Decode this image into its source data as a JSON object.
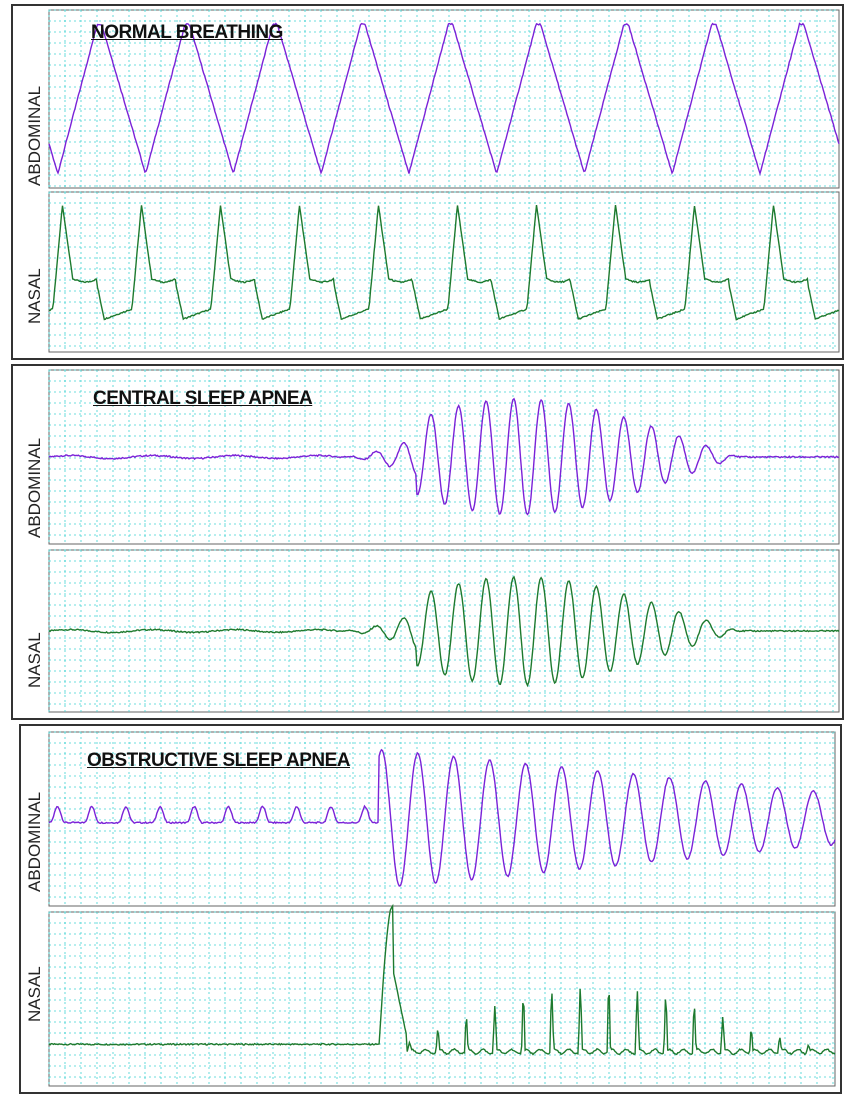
{
  "colors": {
    "abdominal": "#7b22d8",
    "nasal": "#1e7a2e",
    "grid": "#3fd2d2",
    "frame": "#333333"
  },
  "chart_data": [
    {
      "type": "line",
      "title": "NORMAL BREATHING",
      "tracks": [
        {
          "label": "ABDOMINAL",
          "pattern": "normal-abd",
          "cycles": 9
        },
        {
          "label": "NASAL",
          "pattern": "normal-nasal",
          "cycles": 10
        }
      ],
      "grid": true
    },
    {
      "type": "line",
      "title": "CENTRAL SLEEP APNEA",
      "tracks": [
        {
          "label": "ABDOMINAL",
          "pattern": "central",
          "apnea_fraction": 0.37,
          "cycles": 19
        },
        {
          "label": "NASAL",
          "pattern": "central",
          "apnea_fraction": 0.37,
          "cycles": 19
        }
      ],
      "grid": true
    },
    {
      "type": "line",
      "title": "OBSTRUCTIVE SLEEP APNEA",
      "tracks": [
        {
          "label": "ABDOMINAL",
          "pattern": "obstructive-abd",
          "event_fraction": 0.42,
          "cycles": 23
        },
        {
          "label": "NASAL",
          "pattern": "obstructive-nasal",
          "event_fraction": 0.42,
          "cycles": 16
        }
      ],
      "grid": true
    }
  ]
}
